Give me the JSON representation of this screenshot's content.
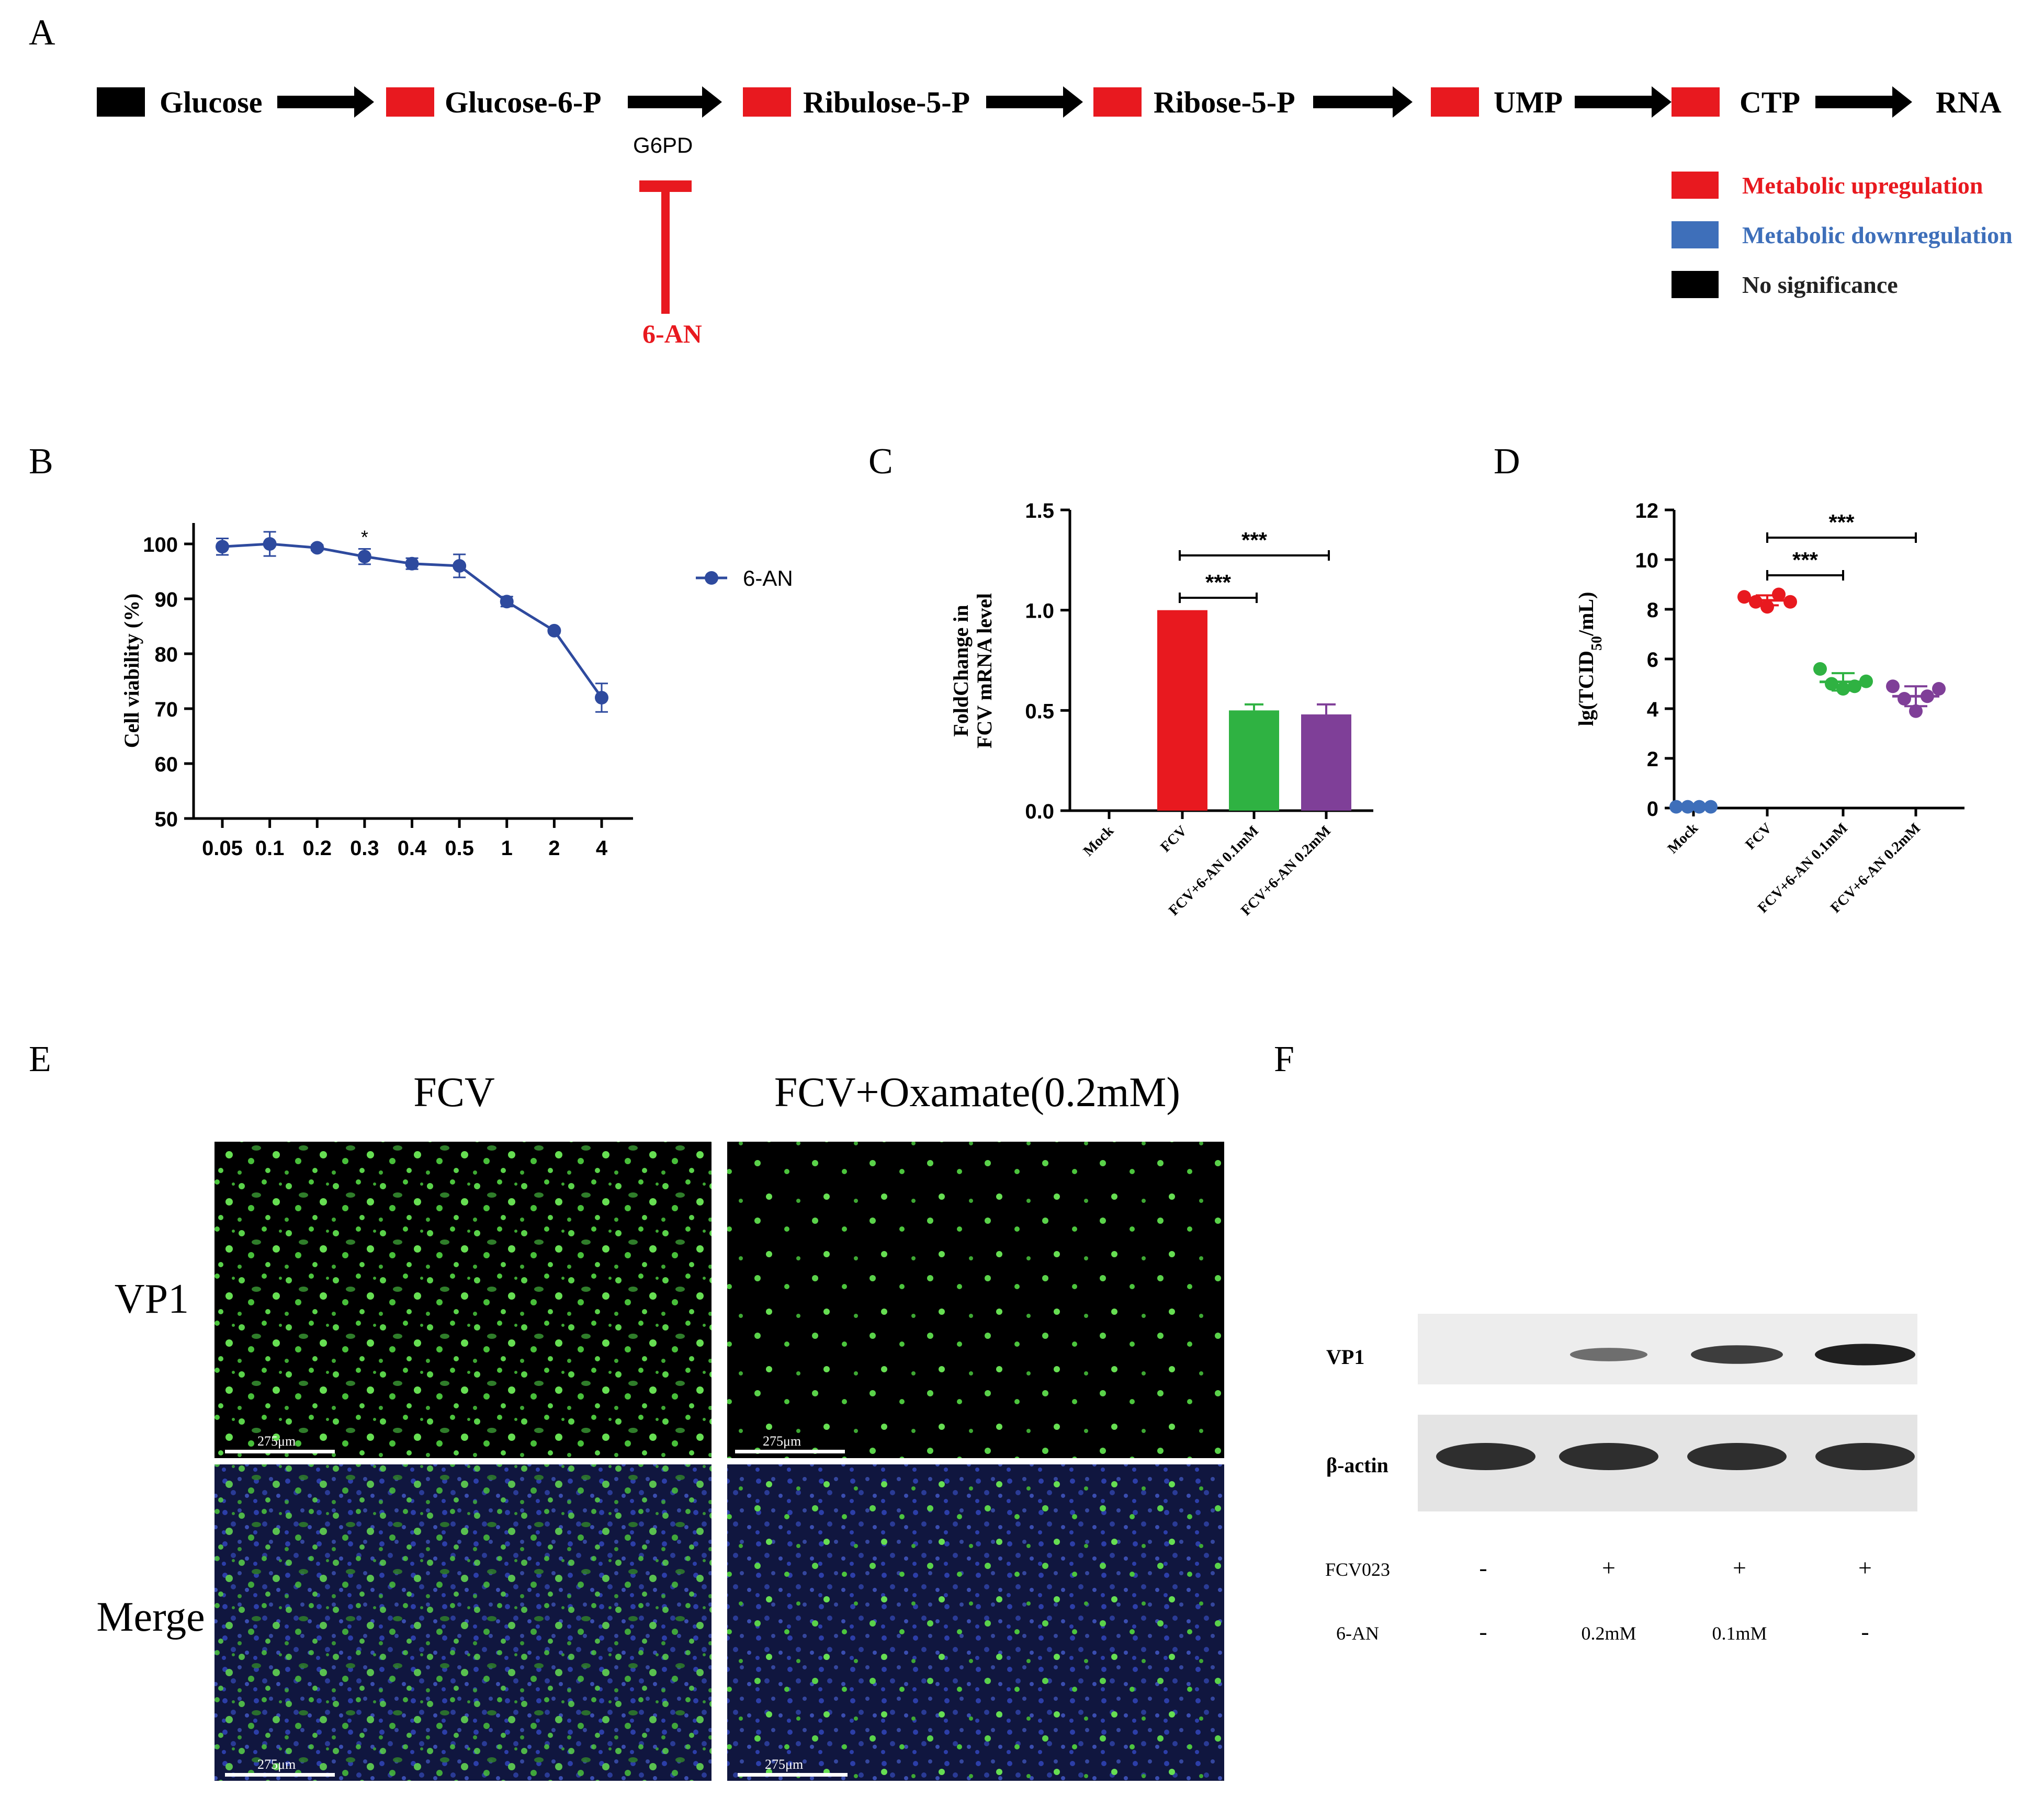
{
  "panel_labels": [
    "A",
    "B",
    "C",
    "D",
    "E",
    "F"
  ],
  "pathway": {
    "steps": [
      {
        "label": "Glucose",
        "box_color": "#000000"
      },
      {
        "label": "Glucose-6-P",
        "box_color": "#e8191f"
      },
      {
        "label": "Ribulose-5-P",
        "box_color": "#e8191f"
      },
      {
        "label": "Ribose-5-P",
        "box_color": "#e8191f"
      },
      {
        "label": "UMP",
        "box_color": "#e8191f"
      },
      {
        "label": "CTP",
        "box_color": "#e8191f"
      },
      {
        "label": "RNA",
        "box_color": null
      }
    ],
    "enzyme": "G6PD",
    "inhibitor": "6-AN",
    "legend": [
      {
        "label": "Metabolic upregulation",
        "color": "#e8191f"
      },
      {
        "label": "Metabolic downregulation",
        "color": "#3e6fba"
      },
      {
        "label": "No significance",
        "color": "#000000"
      }
    ]
  },
  "chart_data": [
    {
      "panel": "B",
      "type": "line",
      "categories": [
        "0.05",
        "0.1",
        "0.2",
        "0.3",
        "0.4",
        "0.5",
        "1",
        "2",
        "4"
      ],
      "series": [
        {
          "name": "6-AN",
          "values": [
            99.5,
            100,
            99.3,
            97.7,
            96.4,
            96,
            89.5,
            84.2,
            72
          ],
          "errors": [
            1.5,
            2.2,
            0.5,
            1.4,
            1,
            2.1,
            0.9,
            0.4,
            2.6
          ],
          "color": "#2e4a9e"
        }
      ],
      "ylabel": "Cell viability (%)",
      "ylim": [
        50,
        100
      ],
      "yticks": [
        "50",
        "60",
        "70",
        "80",
        "90",
        "100"
      ],
      "annotations": [
        {
          "category": "0.3",
          "text": "*"
        }
      ]
    },
    {
      "panel": "C",
      "type": "bar",
      "categories": [
        "Mock",
        "FCV",
        "FCV+6-AN 0.1mM",
        "FCV+6-AN 0.2mM"
      ],
      "values": [
        0,
        1.0,
        0.5,
        0.48
      ],
      "errors": [
        0,
        0,
        0.03,
        0.05
      ],
      "colors": [
        "#000000",
        "#e8191f",
        "#2fb242",
        "#7f3f98"
      ],
      "ylabel": [
        "FoldChange in",
        "FCV mRNA level"
      ],
      "ylim": [
        0,
        1.5
      ],
      "yticks": [
        "0.0",
        "0.5",
        "1.0",
        "1.5"
      ],
      "significance": [
        {
          "from": "FCV",
          "to": "FCV+6-AN 0.1mM",
          "text": "***"
        },
        {
          "from": "FCV",
          "to": "FCV+6-AN 0.2mM",
          "text": "***"
        }
      ]
    },
    {
      "panel": "D",
      "type": "scatter",
      "categories": [
        "Mock",
        "FCV",
        "FCV+6-AN 0.1mM",
        "FCV+6-AN 0.2mM"
      ],
      "points": [
        [
          0.05,
          0.05,
          0.05,
          0.05
        ],
        [
          8.5,
          8.3,
          8.1,
          8.6,
          8.3
        ],
        [
          5.6,
          5.0,
          4.8,
          4.9,
          5.1
        ],
        [
          4.9,
          4.4,
          3.9,
          4.5,
          4.8
        ]
      ],
      "means": [
        0.05,
        8.36,
        5.08,
        4.5
      ],
      "sd": [
        0,
        0.2,
        0.35,
        0.4
      ],
      "colors": [
        "#3e6fba",
        "#e8191f",
        "#2fb242",
        "#7f3f98"
      ],
      "ylabel": "lg(TCID50/mL)",
      "ylim": [
        0,
        12
      ],
      "yticks": [
        "0",
        "2",
        "4",
        "6",
        "8",
        "10",
        "12"
      ],
      "significance": [
        {
          "from": "FCV",
          "to": "FCV+6-AN 0.1mM",
          "text": "***"
        },
        {
          "from": "FCV",
          "to": "FCV+6-AN 0.2mM",
          "text": "***"
        }
      ]
    }
  ],
  "panel_b_legend": "6-AN",
  "panel_d_ylabel_parts": {
    "prefix": "lg(TCID",
    "sub": "50",
    "suffix": "/mL)"
  },
  "microscopy": {
    "columns": [
      "FCV",
      "FCV+Oxamate(0.2mM)"
    ],
    "rows": [
      "VP1",
      "Merge"
    ],
    "scale_bar": "275μm"
  },
  "western": {
    "bands": [
      "VP1",
      "β-actin"
    ],
    "vp1_intensity": [
      0,
      0.35,
      0.7,
      0.9
    ],
    "conditions": [
      {
        "label": "FCV023",
        "values": [
          "-",
          "+",
          "+",
          "+"
        ]
      },
      {
        "label": "6-AN",
        "values": [
          "-",
          "0.2mM",
          "0.1mM",
          "-"
        ]
      }
    ]
  }
}
